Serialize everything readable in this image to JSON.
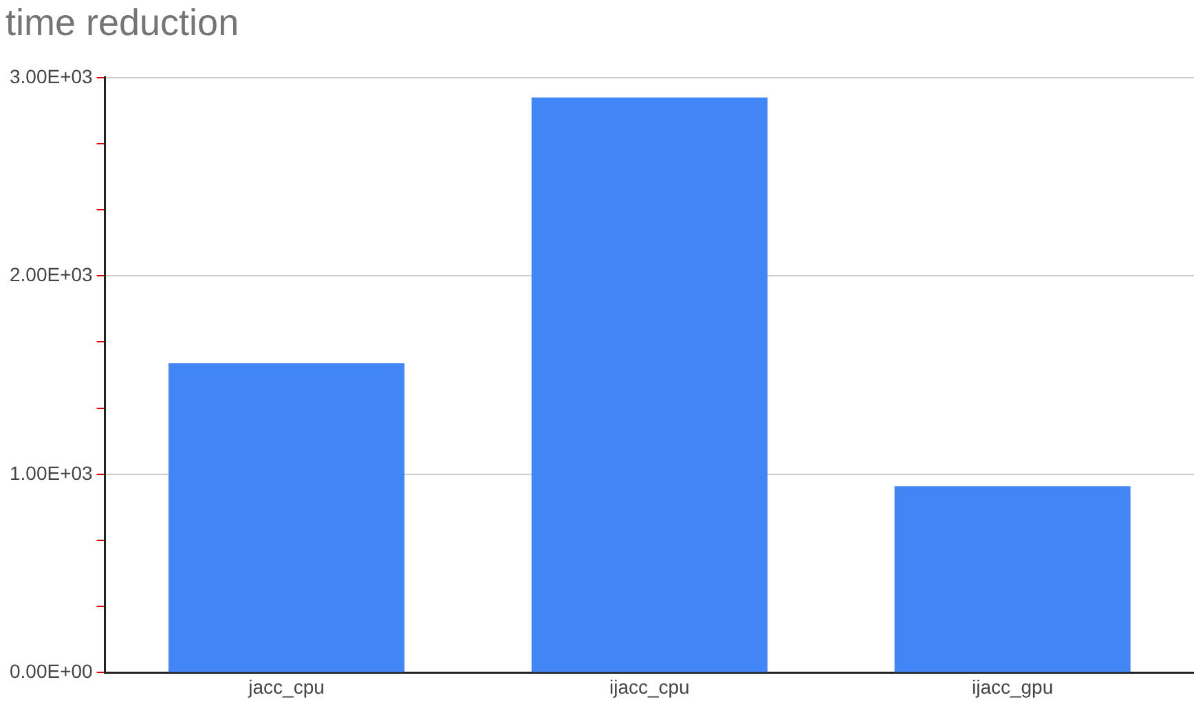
{
  "chart_data": {
    "type": "bar",
    "title": "time reduction",
    "categories": [
      "jacc_cpu",
      "ijacc_cpu",
      "ijacc_gpu"
    ],
    "values": [
      1560,
      2900,
      940
    ],
    "color": "#4285f4",
    "ylim": [
      0,
      3000
    ],
    "yticks": [
      {
        "value": 0,
        "label": "0.00E+00"
      },
      {
        "value": 333,
        "label": null
      },
      {
        "value": 667,
        "label": null
      },
      {
        "value": 1000,
        "label": "1.00E+03"
      },
      {
        "value": 1333,
        "label": null
      },
      {
        "value": 1667,
        "label": null
      },
      {
        "value": 2000,
        "label": "2.00E+03"
      },
      {
        "value": 2333,
        "label": null
      },
      {
        "value": 2667,
        "label": null
      },
      {
        "value": 3000,
        "label": "3.00E+03"
      }
    ],
    "grid": "y",
    "legend": false
  }
}
